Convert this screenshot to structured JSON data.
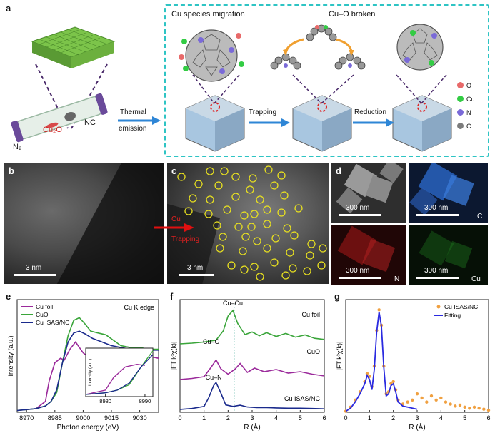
{
  "panels": {
    "a": "a",
    "b": "b",
    "c": "c",
    "d": "d",
    "e": "e",
    "f": "f",
    "g": "g"
  },
  "panel_a": {
    "n2": "N₂",
    "cu2o": "Cu₂O",
    "nc": "NC",
    "thermal": "Thermal",
    "emission": "emission",
    "migration": "Cu species migration",
    "cu_o_broken": "Cu–O broken",
    "trapping": "Trapping",
    "reduction": "Reduction",
    "legend": [
      {
        "label": "O",
        "color": "#e86a6a"
      },
      {
        "label": "Cu",
        "color": "#33cc44"
      },
      {
        "label": "N",
        "color": "#7a6ad8"
      },
      {
        "label": "C",
        "color": "#7c7c7c"
      }
    ]
  },
  "panel_b": {
    "scale": "3 nm"
  },
  "panel_c": {
    "scale": "3 nm",
    "annot1": "Cu",
    "annot2": "Trapping"
  },
  "panel_d": {
    "scale": "300 nm",
    "tiles": [
      {
        "element": "",
        "bg": "#3b3b3b"
      },
      {
        "element": "C",
        "bg": "#0c1a33"
      },
      {
        "element": "N",
        "bg": "#2a0808"
      },
      {
        "element": "Cu",
        "bg": "#081508"
      }
    ]
  },
  "colors": {
    "cu_foil": "#9b2a9b",
    "cuo": "#3aa53a",
    "isas": "#1a2a8c",
    "fitting": "#2a2ae0",
    "exp": "#f0a040"
  },
  "chart_data": [
    {
      "type": "line",
      "title": "",
      "annotation": "Cu K edge",
      "xlabel": "Photon energy (eV)",
      "ylabel": "Intensity (a.u.)",
      "xticks": [
        8970,
        8985,
        9000,
        9015,
        9030
      ],
      "xlim": [
        8965,
        9040
      ],
      "ylim": [
        0,
        1.25
      ],
      "legend": [
        "Cu foil",
        "CuO",
        "Cu ISAS/NC"
      ],
      "legend_position": "top-left",
      "series": [
        {
          "name": "Cu foil",
          "color": "#9b2a9b",
          "x": [
            8965,
            8975,
            8980,
            8982,
            8985,
            8988,
            8990,
            8993,
            8996,
            9000,
            9005,
            9010,
            9015,
            9020,
            9025,
            9030,
            9035,
            9040
          ],
          "y": [
            0.02,
            0.04,
            0.12,
            0.35,
            0.55,
            0.6,
            0.58,
            0.7,
            0.78,
            0.66,
            0.58,
            0.6,
            0.62,
            0.58,
            0.6,
            0.64,
            0.62,
            0.6
          ]
        },
        {
          "name": "CuO",
          "color": "#3aa53a",
          "x": [
            8965,
            8975,
            8980,
            8983,
            8986,
            8989,
            8992,
            8995,
            8998,
            9001,
            9004,
            9008,
            9012,
            9016,
            9020,
            9025,
            9030,
            9035,
            9040
          ],
          "y": [
            0.02,
            0.04,
            0.07,
            0.12,
            0.22,
            0.55,
            0.85,
            1.02,
            1.05,
            0.98,
            0.9,
            0.88,
            0.86,
            0.8,
            0.74,
            0.72,
            0.72,
            0.7,
            0.7
          ]
        },
        {
          "name": "Cu ISAS/NC",
          "color": "#1a2a8c",
          "x": [
            8965,
            8975,
            8980,
            8983,
            8986,
            8989,
            8992,
            8995,
            8998,
            9001,
            9005,
            9010,
            9015,
            9020,
            9025,
            9030,
            9035,
            9040
          ],
          "y": [
            0.02,
            0.04,
            0.07,
            0.12,
            0.25,
            0.55,
            0.78,
            0.88,
            0.9,
            0.87,
            0.82,
            0.78,
            0.74,
            0.72,
            0.7,
            0.7,
            0.69,
            0.69
          ]
        }
      ],
      "inset": {
        "ylabel": "Intensity (a.u.)",
        "xticks": [
          8980,
          8990
        ],
        "xlim": [
          8975,
          8992
        ]
      }
    },
    {
      "type": "line",
      "title": "",
      "xlabel": "R (Å)",
      "ylabel": "|FT k³χ(k)|",
      "xticks": [
        0,
        1,
        2,
        3,
        4,
        5,
        6
      ],
      "xlim": [
        0,
        6
      ],
      "annotations": [
        "Cu–Cu",
        "Cu–O",
        "Cu–N"
      ],
      "series": [
        {
          "name": "Cu foil",
          "color": "#3aa53a",
          "x": [
            0,
            0.5,
            1,
            1.5,
            1.8,
            2.0,
            2.2,
            2.4,
            2.7,
            3.0,
            3.3,
            3.6,
            4.0,
            4.4,
            4.8,
            5.2,
            5.6,
            6
          ],
          "y": [
            0,
            0.02,
            0.05,
            0.1,
            0.35,
            0.75,
            0.9,
            0.55,
            0.25,
            0.32,
            0.22,
            0.3,
            0.2,
            0.28,
            0.18,
            0.24,
            0.15,
            0.12
          ]
        },
        {
          "name": "CuO",
          "color": "#9b2a9b",
          "x": [
            0,
            0.5,
            1,
            1.3,
            1.5,
            1.7,
            2.0,
            2.3,
            2.5,
            2.8,
            3.1,
            3.5,
            4,
            4.5,
            5,
            5.5,
            6
          ],
          "y": [
            0,
            0.03,
            0.08,
            0.35,
            0.55,
            0.3,
            0.15,
            0.3,
            0.45,
            0.2,
            0.32,
            0.22,
            0.28,
            0.18,
            0.22,
            0.15,
            0.1
          ]
        },
        {
          "name": "Cu ISAS/NC",
          "color": "#1a2a8c",
          "x": [
            0,
            0.5,
            1,
            1.2,
            1.4,
            1.5,
            1.7,
            1.9,
            2.2,
            2.5,
            2.8,
            3.2,
            3.6,
            4,
            4.5,
            5,
            5.5,
            6
          ],
          "y": [
            0,
            0.03,
            0.1,
            0.4,
            0.8,
            0.9,
            0.55,
            0.15,
            0.1,
            0.14,
            0.08,
            0.06,
            0.06,
            0.05,
            0.04,
            0.04,
            0.03,
            0.02
          ]
        }
      ],
      "vlines": [
        1.5,
        2.25
      ]
    },
    {
      "type": "line",
      "title": "",
      "xlabel": "R (Å)",
      "ylabel": "|FT k³χ(k)|",
      "xticks": [
        0,
        1,
        2,
        3,
        4,
        5,
        6
      ],
      "xlim": [
        0,
        6
      ],
      "ylim": [
        0,
        1.1
      ],
      "legend": [
        "Cu ISAS/NC",
        "Fitting"
      ],
      "legend_position": "top-right",
      "series": [
        {
          "name": "Cu ISAS/NC",
          "color": "#f0a040",
          "style": "points",
          "x": [
            0,
            0.2,
            0.4,
            0.6,
            0.8,
            0.9,
            1.0,
            1.1,
            1.2,
            1.3,
            1.4,
            1.5,
            1.6,
            1.7,
            1.8,
            1.9,
            2.0,
            2.1,
            2.2,
            2.4,
            2.6,
            2.8,
            3.0,
            3.2,
            3.4,
            3.6,
            3.8,
            4.0,
            4.2,
            4.4,
            4.6,
            4.8,
            5.0,
            5.2,
            5.4,
            5.6,
            5.8,
            6
          ],
          "y": [
            0.01,
            0.05,
            0.12,
            0.2,
            0.3,
            0.38,
            0.35,
            0.25,
            0.45,
            0.8,
            1.0,
            0.85,
            0.45,
            0.18,
            0.2,
            0.28,
            0.3,
            0.22,
            0.12,
            0.08,
            0.1,
            0.12,
            0.18,
            0.14,
            0.1,
            0.16,
            0.12,
            0.14,
            0.1,
            0.08,
            0.06,
            0.07,
            0.05,
            0.04,
            0.05,
            0.04,
            0.03,
            0.02
          ]
        },
        {
          "name": "Fitting",
          "color": "#2a2ae0",
          "x": [
            0,
            0.2,
            0.4,
            0.6,
            0.8,
            0.9,
            1.0,
            1.1,
            1.2,
            1.3,
            1.4,
            1.5,
            1.6,
            1.7,
            1.8,
            1.9,
            2.0,
            2.1,
            2.2,
            2.4,
            2.6,
            2.8,
            3.0
          ],
          "y": [
            0.01,
            0.04,
            0.1,
            0.18,
            0.28,
            0.36,
            0.32,
            0.22,
            0.42,
            0.78,
            0.98,
            0.84,
            0.44,
            0.16,
            0.18,
            0.26,
            0.28,
            0.2,
            0.1,
            0.06,
            0.05,
            0.04,
            0.03
          ]
        }
      ]
    }
  ]
}
